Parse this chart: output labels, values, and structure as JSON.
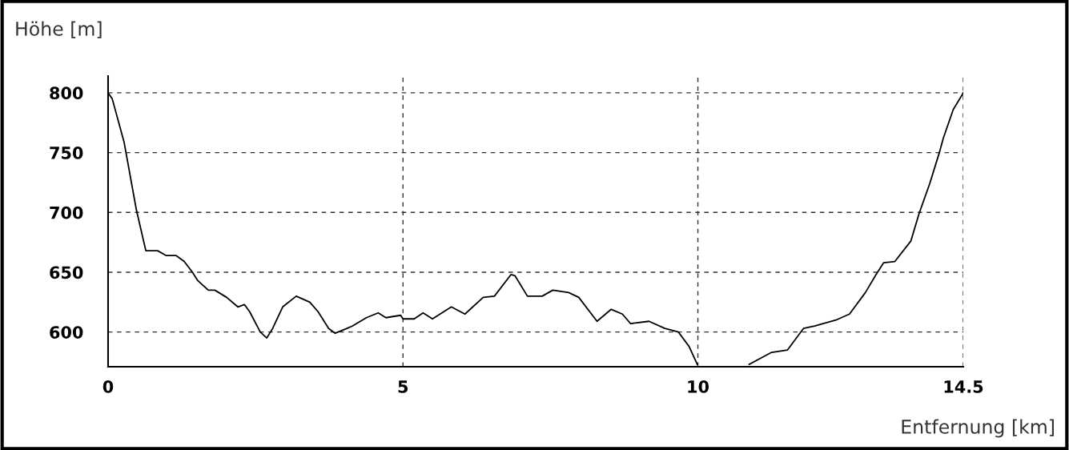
{
  "chart_data": {
    "type": "line",
    "xlabel": "Entfernung [km]",
    "ylabel": "Höhe [m]",
    "x": [
      0,
      0.07,
      0.27,
      0.48,
      0.64,
      0.84,
      0.98,
      1.15,
      1.29,
      1.43,
      1.52,
      1.7,
      1.81,
      2.01,
      2.2,
      2.31,
      2.4,
      2.58,
      2.69,
      2.79,
      2.96,
      3.19,
      3.42,
      3.56,
      3.74,
      3.85,
      4.05,
      4.14,
      4.38,
      4.58,
      4.71,
      4.96,
      5.0,
      5.19,
      5.34,
      5.5,
      5.82,
      6.05,
      6.36,
      6.55,
      6.83,
      6.9,
      7.11,
      7.36,
      7.54,
      7.81,
      7.98,
      8.29,
      8.53,
      8.72,
      8.86,
      9.17,
      9.44,
      9.67,
      9.85,
      9.99,
      10.4,
      10.87,
      11.25,
      11.52,
      11.79,
      11.98,
      12.34,
      12.57,
      12.84,
      13.02,
      13.15,
      13.34,
      13.61,
      13.75,
      13.93,
      14.1,
      14.16,
      14.33,
      14.5
    ],
    "series": [
      {
        "color": "#000000",
        "values": [
          800,
          795,
          759,
          702,
          668,
          668,
          664,
          664,
          659,
          650,
          643,
          635,
          635,
          629,
          621,
          623,
          617,
          600,
          595,
          603,
          621,
          630,
          625,
          617,
          603,
          599,
          603,
          605,
          612,
          616,
          612,
          614,
          611,
          611,
          616,
          611,
          621,
          615,
          629,
          630,
          648,
          647,
          630,
          630,
          635,
          633,
          629,
          609,
          619,
          615,
          607,
          609,
          603,
          600,
          588,
          573,
          null,
          573,
          583,
          585,
          603,
          605,
          610,
          615,
          633,
          648,
          658,
          659,
          676,
          699,
          724,
          751,
          762,
          786,
          800
        ]
      }
    ],
    "xlim": [
      0,
      14.5
    ],
    "ylim": [
      571,
      814
    ],
    "xticks": [
      0,
      5,
      10,
      14.5
    ],
    "yticks": [
      600,
      650,
      700,
      750,
      800
    ],
    "grid": true,
    "line_style": "solid",
    "marker": "none",
    "legend": false
  }
}
